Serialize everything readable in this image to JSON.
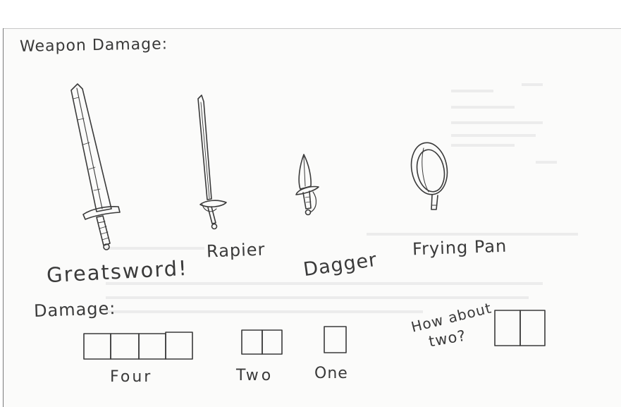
{
  "page": {
    "title": "Weapon Damage:",
    "weapons": [
      {
        "label": "Greatsword!",
        "damage_boxes": 4,
        "damage_label": "Four"
      },
      {
        "label": "Rapier",
        "damage_boxes": 2,
        "damage_label": "Two"
      },
      {
        "label": "Dagger",
        "damage_boxes": 1,
        "damage_label": "One"
      },
      {
        "label": "Frying Pan",
        "damage_boxes": 2,
        "damage_label": "How about two?"
      }
    ],
    "damage_heading": "Damage:",
    "frying_pan_question_line1": "How about",
    "frying_pan_question_line2": "two?"
  },
  "colors": {
    "ink": "#3a3a3a",
    "paper": "#fbfbfa"
  }
}
